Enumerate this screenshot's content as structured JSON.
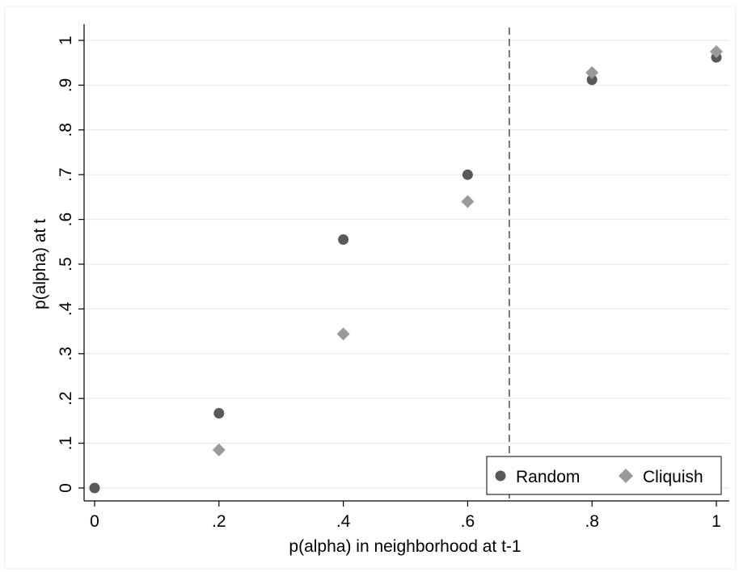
{
  "chart_data": {
    "type": "scatter",
    "xlabel": "p(alpha) in neighborhood at t-1",
    "ylabel": "p(alpha) at t",
    "xlim": [
      0,
      1
    ],
    "ylim": [
      0,
      1
    ],
    "x_ticks": [
      "0",
      ".2",
      ".4",
      ".6",
      ".8",
      "1"
    ],
    "y_ticks": [
      "0",
      ".1",
      ".2",
      ".3",
      ".4",
      ".5",
      ".6",
      ".7",
      ".8",
      ".9",
      "1"
    ],
    "grid": "horizontal",
    "reference_line": {
      "axis": "x",
      "value": 0.667,
      "style": "dashed"
    },
    "series": [
      {
        "name": "Random",
        "marker": "circle",
        "color": "#595959",
        "x": [
          0,
          0.2,
          0.4,
          0.6,
          0.8,
          1.0
        ],
        "y": [
          0.0,
          0.167,
          0.555,
          0.7,
          0.912,
          0.962
        ]
      },
      {
        "name": "Cliquish",
        "marker": "diamond",
        "color": "#9a9a9a",
        "x": [
          0.2,
          0.4,
          0.6,
          0.8,
          1.0
        ],
        "y": [
          0.085,
          0.344,
          0.64,
          0.928,
          0.975
        ]
      }
    ],
    "legend": {
      "position": "bottom-right",
      "entries": [
        "Random",
        "Cliquish"
      ]
    }
  }
}
